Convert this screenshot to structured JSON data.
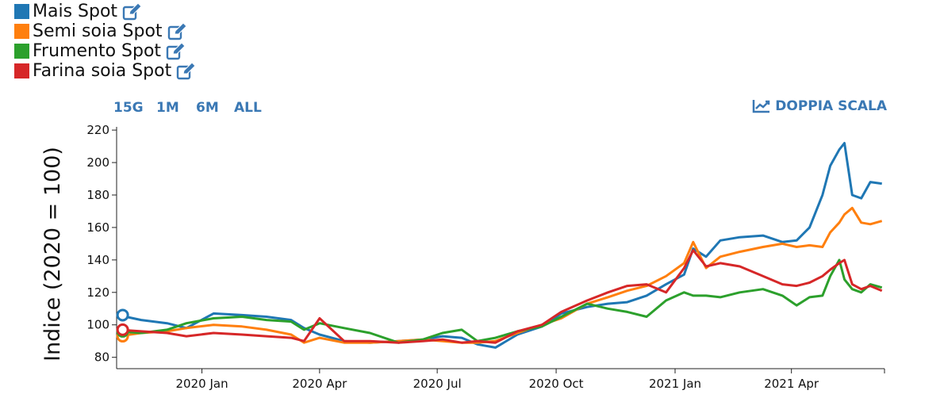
{
  "legend": [
    {
      "label": "Mais Spot",
      "color": "#1f77b4"
    },
    {
      "label": "Semi soia Spot",
      "color": "#ff7f0e"
    },
    {
      "label": "Frumento Spot",
      "color": "#2ca02c"
    },
    {
      "label": "Farina soia Spot",
      "color": "#d62728"
    }
  ],
  "range_buttons": [
    "15G",
    "1M",
    "6M",
    "ALL"
  ],
  "dual_scale_label": "DOPPIA SCALA",
  "chart_data": {
    "type": "line",
    "ylabel": "Indice (2020 = 100)",
    "xlabel": "",
    "ylim": [
      73,
      222
    ],
    "yticks": [
      80,
      100,
      120,
      140,
      160,
      180,
      200,
      220
    ],
    "xlim": [
      "2019-10-27",
      "2021-06-12"
    ],
    "xticks": [
      {
        "date": "2020-01-01",
        "label": "2020 Jan"
      },
      {
        "date": "2020-04-01",
        "label": "2020 Apr"
      },
      {
        "date": "2020-07-01",
        "label": "2020 Jul"
      },
      {
        "date": "2020-10-01",
        "label": "2020 Oct"
      },
      {
        "date": "2021-01-01",
        "label": "2021 Jan"
      },
      {
        "date": "2021-04-01",
        "label": "2021 Apr"
      }
    ],
    "series": [
      {
        "name": "Mais Spot",
        "color": "#1f77b4",
        "x": [
          "2019-10-28",
          "2019-11-15",
          "2019-12-05",
          "2019-12-20",
          "2020-01-10",
          "2020-02-01",
          "2020-02-20",
          "2020-03-10",
          "2020-03-20",
          "2020-04-01",
          "2020-04-20",
          "2020-05-10",
          "2020-06-01",
          "2020-06-20",
          "2020-07-05",
          "2020-07-20",
          "2020-08-01",
          "2020-08-15",
          "2020-09-01",
          "2020-09-20",
          "2020-10-05",
          "2020-10-25",
          "2020-11-10",
          "2020-11-25",
          "2020-12-10",
          "2020-12-25",
          "2021-01-08",
          "2021-01-15",
          "2021-01-25",
          "2021-02-05",
          "2021-02-20",
          "2021-03-10",
          "2021-03-25",
          "2021-04-05",
          "2021-04-15",
          "2021-04-25",
          "2021-05-01",
          "2021-05-08",
          "2021-05-12",
          "2021-05-18",
          "2021-05-25",
          "2021-06-01",
          "2021-06-10"
        ],
        "y": [
          106,
          103,
          101,
          98,
          107,
          106,
          105,
          103,
          98,
          94,
          90,
          89,
          90,
          91,
          93,
          92,
          88,
          86,
          94,
          99,
          107,
          111,
          113,
          114,
          118,
          125,
          131,
          147,
          142,
          152,
          154,
          155,
          151,
          152,
          160,
          180,
          198,
          208,
          212,
          180,
          178,
          188,
          187
        ]
      },
      {
        "name": "Semi soia Spot",
        "color": "#ff7f0e",
        "x": [
          "2019-10-28",
          "2019-11-15",
          "2019-12-05",
          "2019-12-20",
          "2020-01-10",
          "2020-02-01",
          "2020-02-20",
          "2020-03-10",
          "2020-03-20",
          "2020-04-01",
          "2020-04-20",
          "2020-05-10",
          "2020-06-01",
          "2020-06-20",
          "2020-07-05",
          "2020-07-20",
          "2020-08-01",
          "2020-08-15",
          "2020-09-01",
          "2020-09-20",
          "2020-10-05",
          "2020-10-25",
          "2020-11-10",
          "2020-11-25",
          "2020-12-10",
          "2020-12-25",
          "2021-01-08",
          "2021-01-15",
          "2021-01-25",
          "2021-02-05",
          "2021-02-20",
          "2021-03-10",
          "2021-03-25",
          "2021-04-05",
          "2021-04-15",
          "2021-04-25",
          "2021-05-01",
          "2021-05-08",
          "2021-05-12",
          "2021-05-18",
          "2021-05-25",
          "2021-06-01",
          "2021-06-10"
        ],
        "y": [
          93,
          95,
          96,
          98,
          100,
          99,
          97,
          94,
          89,
          92,
          89,
          89,
          90,
          91,
          90,
          89,
          89,
          90,
          95,
          100,
          104,
          113,
          117,
          121,
          124,
          130,
          138,
          151,
          135,
          142,
          145,
          148,
          150,
          148,
          149,
          148,
          157,
          163,
          168,
          172,
          163,
          162,
          164
        ]
      },
      {
        "name": "Frumento Spot",
        "color": "#2ca02c",
        "x": [
          "2019-10-28",
          "2019-11-15",
          "2019-12-05",
          "2019-12-20",
          "2020-01-10",
          "2020-02-01",
          "2020-02-20",
          "2020-03-10",
          "2020-03-20",
          "2020-04-01",
          "2020-04-20",
          "2020-05-10",
          "2020-06-01",
          "2020-06-20",
          "2020-07-05",
          "2020-07-20",
          "2020-08-01",
          "2020-08-15",
          "2020-09-01",
          "2020-09-20",
          "2020-10-05",
          "2020-10-25",
          "2020-11-10",
          "2020-11-25",
          "2020-12-10",
          "2020-12-25",
          "2021-01-08",
          "2021-01-15",
          "2021-01-25",
          "2021-02-05",
          "2021-02-20",
          "2021-03-10",
          "2021-03-25",
          "2021-04-05",
          "2021-04-15",
          "2021-04-25",
          "2021-05-01",
          "2021-05-08",
          "2021-05-12",
          "2021-05-18",
          "2021-05-25",
          "2021-06-01",
          "2021-06-10"
        ],
        "y": [
          96,
          95,
          97,
          101,
          104,
          105,
          103,
          102,
          97,
          101,
          98,
          95,
          89,
          91,
          95,
          97,
          90,
          92,
          96,
          99,
          105,
          113,
          110,
          108,
          105,
          115,
          120,
          118,
          118,
          117,
          120,
          122,
          118,
          112,
          117,
          118,
          130,
          140,
          128,
          122,
          120,
          125,
          123
        ]
      },
      {
        "name": "Farina soia Spot",
        "color": "#d62728",
        "x": [
          "2019-10-28",
          "2019-11-15",
          "2019-12-05",
          "2019-12-20",
          "2020-01-10",
          "2020-02-01",
          "2020-02-20",
          "2020-03-10",
          "2020-03-20",
          "2020-04-01",
          "2020-04-20",
          "2020-05-10",
          "2020-06-01",
          "2020-06-20",
          "2020-07-05",
          "2020-07-20",
          "2020-08-01",
          "2020-08-15",
          "2020-09-01",
          "2020-09-20",
          "2020-10-05",
          "2020-10-25",
          "2020-11-10",
          "2020-11-25",
          "2020-12-10",
          "2020-12-25",
          "2021-01-08",
          "2021-01-15",
          "2021-01-25",
          "2021-02-05",
          "2021-02-20",
          "2021-03-10",
          "2021-03-25",
          "2021-04-05",
          "2021-04-15",
          "2021-04-25",
          "2021-05-01",
          "2021-05-08",
          "2021-05-12",
          "2021-05-18",
          "2021-05-25",
          "2021-06-01",
          "2021-06-10"
        ],
        "y": [
          97,
          96,
          95,
          93,
          95,
          94,
          93,
          92,
          90,
          104,
          90,
          90,
          89,
          90,
          91,
          89,
          90,
          89,
          96,
          100,
          108,
          115,
          120,
          124,
          125,
          120,
          135,
          146,
          136,
          138,
          136,
          130,
          125,
          124,
          126,
          130,
          134,
          138,
          140,
          125,
          122,
          124,
          121
        ]
      }
    ]
  }
}
